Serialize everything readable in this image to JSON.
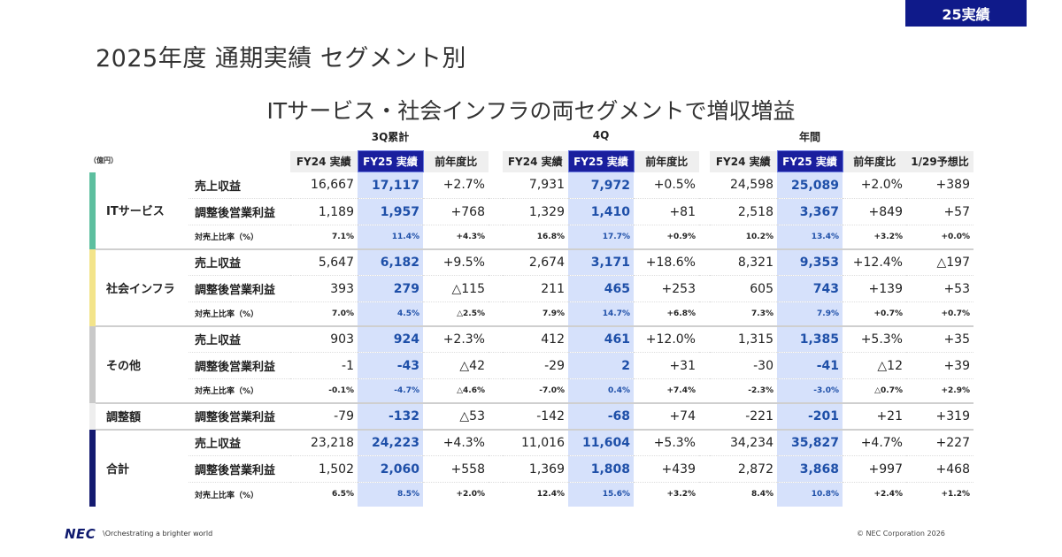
{
  "badge": "25実績",
  "title": "2025年度 通期実績 セグメント別",
  "subtitle": "ITサービス・社会インフラの両セグメントで増収増益",
  "unit": "（億円）",
  "groups": [
    "3Q累計",
    "4Q",
    "年間"
  ],
  "headers": {
    "fy24": "FY24 実績",
    "fy25": "FY25 実績",
    "yoy": "前年度比",
    "vs_forecast": "1/29予想比"
  },
  "colors": {
    "it": "#5dbf9f",
    "si": "#f3e48a",
    "other": "#c9c9c9",
    "adj": "#eeeeee",
    "total": "#141a70",
    "highlight": "#d6e1fb",
    "navy": "#1a1f9e"
  },
  "segments": [
    {
      "name": "ITサービス",
      "color_key": "it",
      "rows": [
        {
          "label": "売上収益",
          "v": [
            "16,667",
            "17,117",
            "+2.7%",
            "7,931",
            "7,972",
            "+0.5%",
            "24,598",
            "25,089",
            "+2.0%",
            "+389"
          ]
        },
        {
          "label": "調整後営業利益",
          "v": [
            "1,189",
            "1,957",
            "+768",
            "1,329",
            "1,410",
            "+81",
            "2,518",
            "3,367",
            "+849",
            "+57"
          ]
        },
        {
          "label": "対売上比率（%）",
          "pct": true,
          "v": [
            "7.1%",
            "11.4%",
            "+4.3%",
            "16.8%",
            "17.7%",
            "+0.9%",
            "10.2%",
            "13.4%",
            "+3.2%",
            "+0.0%"
          ]
        }
      ]
    },
    {
      "name": "社会インフラ",
      "color_key": "si",
      "rows": [
        {
          "label": "売上収益",
          "v": [
            "5,647",
            "6,182",
            "+9.5%",
            "2,674",
            "3,171",
            "+18.6%",
            "8,321",
            "9,353",
            "+12.4%",
            "△197"
          ]
        },
        {
          "label": "調整後営業利益",
          "v": [
            "393",
            "279",
            "△115",
            "211",
            "465",
            "+253",
            "605",
            "743",
            "+139",
            "+53"
          ]
        },
        {
          "label": "対売上比率（%）",
          "pct": true,
          "v": [
            "7.0%",
            "4.5%",
            "△2.5%",
            "7.9%",
            "14.7%",
            "+6.8%",
            "7.3%",
            "7.9%",
            "+0.7%",
            "+0.7%"
          ]
        }
      ]
    },
    {
      "name": "その他",
      "color_key": "other",
      "rows": [
        {
          "label": "売上収益",
          "v": [
            "903",
            "924",
            "+2.3%",
            "412",
            "461",
            "+12.0%",
            "1,315",
            "1,385",
            "+5.3%",
            "+35"
          ]
        },
        {
          "label": "調整後営業利益",
          "v": [
            "-1",
            "-43",
            "△42",
            "-29",
            "2",
            "+31",
            "-30",
            "-41",
            "△12",
            "+39"
          ]
        },
        {
          "label": "対売上比率（%）",
          "pct": true,
          "v": [
            "-0.1%",
            "-4.7%",
            "△4.6%",
            "-7.0%",
            "0.4%",
            "+7.4%",
            "-2.3%",
            "-3.0%",
            "△0.7%",
            "+2.9%"
          ]
        }
      ]
    },
    {
      "name": "調整額",
      "color_key": "adj",
      "rows": [
        {
          "label": "調整後営業利益",
          "v": [
            "-79",
            "-132",
            "△53",
            "-142",
            "-68",
            "+74",
            "-221",
            "-201",
            "+21",
            "+319"
          ]
        }
      ]
    },
    {
      "name": "合計",
      "color_key": "total",
      "rows": [
        {
          "label": "売上収益",
          "v": [
            "23,218",
            "24,223",
            "+4.3%",
            "11,016",
            "11,604",
            "+5.3%",
            "34,234",
            "35,827",
            "+4.7%",
            "+227"
          ]
        },
        {
          "label": "調整後営業利益",
          "v": [
            "1,502",
            "2,060",
            "+558",
            "1,369",
            "1,808",
            "+439",
            "2,872",
            "3,868",
            "+997",
            "+468"
          ]
        },
        {
          "label": "対売上比率（%）",
          "pct": true,
          "v": [
            "6.5%",
            "8.5%",
            "+2.0%",
            "12.4%",
            "15.6%",
            "+3.2%",
            "8.4%",
            "10.8%",
            "+2.4%",
            "+1.2%"
          ]
        }
      ]
    }
  ],
  "footer": {
    "logo": "NEC",
    "tagline": "\\Orchestrating a brighter world",
    "copyright": "© NEC Corporation 2026"
  }
}
